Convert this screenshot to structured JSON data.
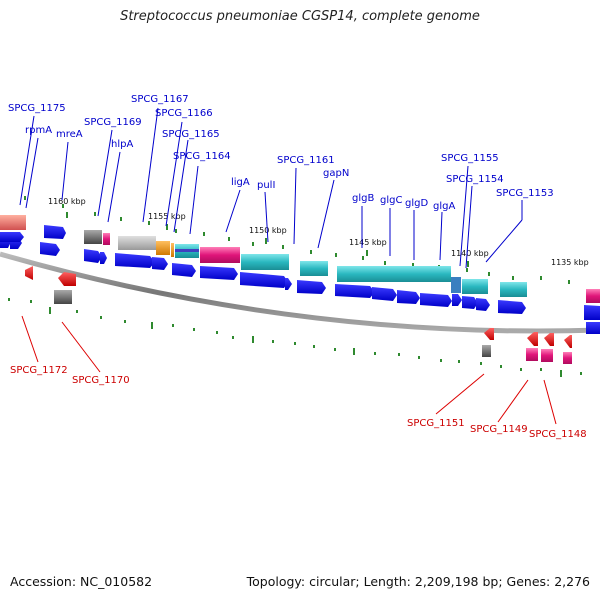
{
  "title": "Streptococcus pneumoniae CGSP14, complete genome",
  "footer": {
    "accession": "Accession: NC_010582",
    "summary": "Topology: circular; Length: 2,209,198 bp; Genes: 2,276"
  },
  "ruler": [
    "1160 kbp",
    "1155 kbp",
    "1150 kbp",
    "1145 kbp",
    "1140 kbp",
    "1135 kbp"
  ],
  "genes_top": [
    "SPCG_1175",
    "rpmA",
    "mreA",
    "SPCG_1169",
    "hlpA",
    "SPCG_1167",
    "SPCG_1166",
    "SPCG_1165",
    "SPCG_1164",
    "ligA",
    "pulI",
    "SPCG_1161",
    "gapN",
    "glgB",
    "glgC",
    "glgD",
    "glgA",
    "SPCG_1155",
    "SPCG_1154",
    "SPCG_1153"
  ],
  "genes_bottom": [
    "SPCG_1172",
    "SPCG_1170",
    "SPCG_1151",
    "SPCG_1149",
    "SPCG_1148"
  ],
  "colors": {
    "forward": "#0000ee",
    "reverse": "#ee0000",
    "blue_label": "#0000cc",
    "red_label": "#cc0000",
    "cyan": "#2ab8c0",
    "magenta": "#e0157a",
    "grey": "#9a9a9a",
    "orange": "#e8900a",
    "salmon": "#e87070",
    "backbone": "#888888",
    "tick": "#2f8a2f"
  }
}
